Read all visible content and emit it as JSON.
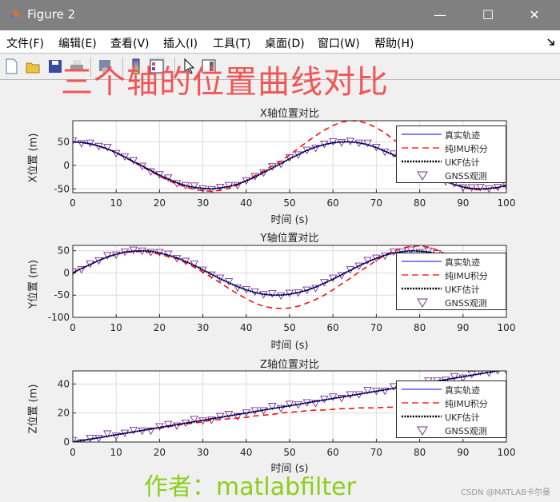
{
  "window": {
    "title": "Figure 2",
    "minimize": "—",
    "maximize": "☐",
    "close": "✕"
  },
  "menu": [
    "文件(F)",
    "编辑(E)",
    "查看(V)",
    "插入(I)",
    "工具(T)",
    "桌面(D)",
    "窗口(W)",
    "帮助(H)"
  ],
  "toolbar": [
    "new-figure-icon",
    "open-icon",
    "save-icon",
    "print-icon",
    "link-plot-icon",
    "colorbar-icon",
    "legend-icon",
    "pointer-icon",
    "property-inspector-icon"
  ],
  "overlay": {
    "headline": "三个轴的位置曲线对比",
    "author": "作者：matlabfilter",
    "watermark": "CSDN @MATLAB卡尔曼"
  },
  "colors": {
    "true": "#0000ff",
    "imu": "#ff0000",
    "ukf": "#000000",
    "gnss": "#7e2f8e"
  },
  "chart_data": [
    {
      "type": "line",
      "title": "X轴位置对比",
      "xlabel": "时间 (s)",
      "ylabel": "X位置 (m)",
      "xlim": [
        0,
        100
      ],
      "ylim": [
        -58,
        95
      ],
      "xticks": [
        0,
        10,
        20,
        30,
        40,
        50,
        60,
        70,
        80,
        90,
        100
      ],
      "yticks": [
        -50,
        0,
        50
      ],
      "grid": true,
      "legend": "top-right",
      "x": [
        0,
        2,
        4,
        6,
        8,
        10,
        12,
        14,
        16,
        18,
        20,
        22,
        24,
        26,
        28,
        30,
        32,
        34,
        36,
        38,
        40,
        42,
        44,
        46,
        48,
        50,
        52,
        54,
        56,
        58,
        60,
        62,
        64,
        66,
        68,
        70,
        72,
        74,
        76,
        78,
        80,
        82,
        84,
        86,
        88,
        90,
        92,
        94,
        96,
        98,
        100
      ],
      "series": [
        {
          "name": "真实轨迹",
          "values": [
            50,
            49,
            46,
            41,
            35,
            27,
            18,
            8,
            -1,
            -11,
            -21,
            -29,
            -37,
            -43,
            -47,
            -49,
            -50,
            -48,
            -45,
            -40,
            -33,
            -25,
            -15,
            -6,
            4,
            14,
            23,
            32,
            39,
            44,
            48,
            50,
            50,
            48,
            44,
            38,
            30,
            22,
            12,
            3,
            -7,
            -17,
            -26,
            -34,
            -41,
            -46,
            -49,
            -50,
            -49,
            -47,
            -42
          ]
        },
        {
          "name": "纯IMU积分",
          "values": [
            50,
            49,
            46,
            41,
            35,
            27,
            17,
            7,
            -3,
            -13,
            -23,
            -32,
            -40,
            -46,
            -51,
            -54,
            -55,
            -53,
            -49,
            -42,
            -32,
            -22,
            -12,
            -1,
            9,
            22,
            36,
            50,
            63,
            75,
            85,
            92,
            95,
            94,
            89,
            80,
            69,
            55,
            40,
            25,
            10,
            -5,
            -18,
            -30,
            -40,
            -47,
            -51,
            -52,
            -50,
            -48,
            -44
          ]
        },
        {
          "name": "UKF估计",
          "values": [
            50,
            49,
            46,
            41,
            35,
            27,
            18,
            8,
            -1,
            -11,
            -21,
            -29,
            -37,
            -43,
            -47,
            -49,
            -50,
            -48,
            -45,
            -40,
            -33,
            -25,
            -15,
            -6,
            4,
            14,
            23,
            32,
            39,
            44,
            48,
            50,
            50,
            48,
            44,
            38,
            30,
            22,
            12,
            3,
            -7,
            -17,
            -26,
            -34,
            -41,
            -46,
            -49,
            -50,
            -49,
            -47,
            -42
          ]
        },
        {
          "name": "GNSS观测",
          "values": [
            52,
            46,
            47,
            40,
            38,
            25,
            18,
            10,
            -2,
            -14,
            -20,
            -27,
            -39,
            -43,
            -44,
            -50,
            -52,
            -47,
            -43,
            -43,
            -33,
            -24,
            -16,
            -3,
            2,
            16,
            22,
            32,
            36,
            45,
            50,
            48,
            51,
            47,
            47,
            38,
            28,
            24,
            11,
            4,
            -10,
            -15,
            -26,
            -35,
            -39,
            -48,
            -48,
            -47,
            -50,
            -47,
            -44
          ]
        }
      ]
    },
    {
      "type": "line",
      "title": "Y轴位置对比",
      "xlabel": "时间 (s)",
      "ylabel": "Y位置 (m)",
      "xlim": [
        0,
        100
      ],
      "ylim": [
        -100,
        62
      ],
      "xticks": [
        0,
        10,
        20,
        30,
        40,
        50,
        60,
        70,
        80,
        90,
        100
      ],
      "yticks": [
        -100,
        -50,
        0,
        50
      ],
      "grid": true,
      "legend": "top-right",
      "x": [
        0,
        2,
        4,
        6,
        8,
        10,
        12,
        14,
        16,
        18,
        20,
        22,
        24,
        26,
        28,
        30,
        32,
        34,
        36,
        38,
        40,
        42,
        44,
        46,
        48,
        50,
        52,
        54,
        56,
        58,
        60,
        62,
        64,
        66,
        68,
        70,
        72,
        74,
        76,
        78,
        80,
        82,
        84,
        86,
        88,
        90,
        92,
        94,
        96,
        98,
        100
      ],
      "series": [
        {
          "name": "真实轨迹",
          "values": [
            0,
            10,
            19,
            28,
            36,
            42,
            47,
            49,
            50,
            49,
            45,
            40,
            34,
            26,
            17,
            7,
            -3,
            -13,
            -22,
            -31,
            -38,
            -44,
            -48,
            -50,
            -50,
            -48,
            -44,
            -39,
            -32,
            -23,
            -14,
            -4,
            6,
            16,
            25,
            33,
            40,
            45,
            48,
            50,
            49,
            47,
            43,
            37,
            29,
            21,
            11,
            1,
            -9,
            -18,
            -27
          ]
        },
        {
          "name": "纯IMU积分",
          "values": [
            0,
            10,
            19,
            28,
            36,
            42,
            46,
            48,
            48,
            46,
            42,
            37,
            32,
            23,
            13,
            2,
            -10,
            -22,
            -35,
            -47,
            -58,
            -68,
            -75,
            -79,
            -80,
            -79,
            -75,
            -68,
            -60,
            -50,
            -38,
            -25,
            -12,
            2,
            15,
            28,
            40,
            49,
            56,
            60,
            61,
            58,
            52,
            43,
            32,
            20,
            7,
            -6,
            -28,
            -40,
            -50
          ]
        },
        {
          "name": "UKF估计",
          "values": [
            0,
            10,
            19,
            28,
            36,
            42,
            47,
            49,
            50,
            49,
            45,
            40,
            34,
            26,
            17,
            7,
            -3,
            -13,
            -22,
            -31,
            -38,
            -44,
            -48,
            -50,
            -50,
            -48,
            -44,
            -39,
            -32,
            -23,
            -14,
            -4,
            6,
            16,
            25,
            33,
            40,
            45,
            48,
            50,
            49,
            47,
            43,
            37,
            29,
            21,
            11,
            1,
            -9,
            -18,
            -27
          ]
        },
        {
          "name": "GNSS观测",
          "values": [
            2,
            7,
            20,
            27,
            39,
            40,
            47,
            51,
            49,
            46,
            46,
            42,
            32,
            26,
            20,
            6,
            -5,
            -12,
            -20,
            -34,
            -38,
            -43,
            -49,
            -47,
            -52,
            -46,
            -45,
            -39,
            -35,
            -22,
            -12,
            -6,
            7,
            15,
            28,
            33,
            38,
            47,
            47,
            51,
            46,
            49,
            43,
            36,
            31,
            19,
            12,
            4,
            -10,
            -18,
            -29
          ]
        }
      ]
    },
    {
      "type": "line",
      "title": "Z轴位置对比",
      "xlabel": "时间 (s)",
      "ylabel": "Z位置 (m)",
      "xlim": [
        0,
        100
      ],
      "ylim": [
        0,
        49
      ],
      "xticks": [
        0,
        10,
        20,
        30,
        40,
        50,
        60,
        70,
        80,
        90,
        100
      ],
      "yticks": [
        0,
        20,
        40
      ],
      "grid": true,
      "legend": "top-right",
      "x": [
        0,
        2,
        4,
        6,
        8,
        10,
        12,
        14,
        16,
        18,
        20,
        22,
        24,
        26,
        28,
        30,
        32,
        34,
        36,
        38,
        40,
        42,
        44,
        46,
        48,
        50,
        52,
        54,
        56,
        58,
        60,
        62,
        64,
        66,
        68,
        70,
        72,
        74,
        76,
        78,
        80,
        82,
        84,
        86,
        88,
        90,
        92,
        94,
        96,
        98,
        100
      ],
      "series": [
        {
          "name": "真实轨迹",
          "values": [
            0,
            1,
            2,
            3,
            4,
            5,
            6,
            7,
            8,
            9,
            10,
            11,
            12,
            13,
            14,
            15,
            16,
            17,
            18,
            19,
            20,
            21,
            22,
            23,
            24,
            25,
            26,
            27,
            28,
            29,
            30,
            31,
            32,
            33,
            34,
            35,
            36,
            37,
            38,
            39,
            40,
            41,
            42,
            43,
            44,
            45,
            46,
            47,
            48,
            49,
            50
          ]
        },
        {
          "name": "纯IMU积分",
          "values": [
            0,
            1,
            2,
            3,
            4,
            5,
            6,
            7,
            8,
            9,
            9.5,
            10.5,
            11.5,
            12.5,
            13,
            14,
            15,
            15.5,
            16,
            16.5,
            17,
            18,
            18.5,
            19,
            20,
            20.5,
            21,
            21.5,
            22,
            22,
            22.5,
            23,
            23,
            23.5,
            23.5,
            23.5,
            24,
            24,
            24,
            24,
            24,
            23.5,
            23,
            22.5,
            22,
            21.5,
            21,
            20,
            19,
            18,
            17
          ]
        },
        {
          "name": "UKF估计",
          "values": [
            0,
            1,
            2,
            3,
            4,
            5,
            6,
            7,
            8,
            9,
            10,
            11,
            12,
            13,
            14,
            15,
            16,
            17,
            18,
            19,
            20,
            21,
            22,
            23,
            24,
            25,
            26,
            27,
            28,
            29,
            30,
            31,
            32,
            33,
            34,
            35,
            36,
            37,
            38,
            39,
            40,
            41,
            42,
            43,
            44,
            45,
            46,
            47,
            48,
            49,
            50
          ]
        },
        {
          "name": "GNSS观测",
          "values": [
            1,
            -0.5,
            2.5,
            2.5,
            5.5,
            4,
            6,
            8,
            7.5,
            7.5,
            10.5,
            12,
            11,
            13,
            15.5,
            14.5,
            15,
            17.5,
            19,
            17.5,
            20,
            21.5,
            21.5,
            24.5,
            23,
            26,
            25.5,
            27,
            26.5,
            29.5,
            31,
            30,
            32.5,
            32.5,
            35.5,
            35,
            35,
            38,
            37.5,
            39.5,
            38.5,
            42,
            42,
            42.5,
            45,
            44,
            46.5,
            48.5,
            47.5,
            49,
            49
          ]
        }
      ]
    }
  ]
}
